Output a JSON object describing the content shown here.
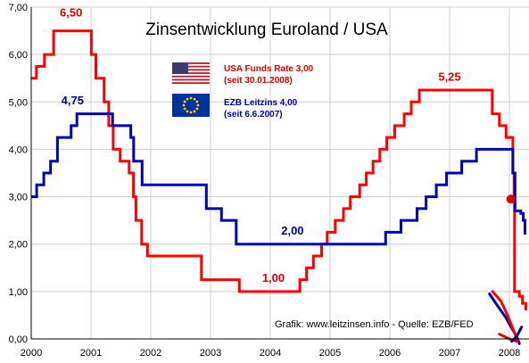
{
  "chart_data": {
    "type": "line",
    "title": "Zinsentwicklung Euroland / USA",
    "xlabel": "",
    "ylabel": "",
    "xlim": [
      2000,
      2008.3
    ],
    "ylim": [
      0,
      7
    ],
    "x_ticks": [
      "2000",
      "2001",
      "2002",
      "2003",
      "2004",
      "2005",
      "2006",
      "2007",
      "2008"
    ],
    "y_ticks": [
      "0,00",
      "1,00",
      "2,00",
      "3,00",
      "4,00",
      "5,00",
      "6,00",
      "7,00"
    ],
    "grid": true,
    "legend_position": "top-center",
    "series": [
      {
        "name": "USA Funds Rate 3,00",
        "name_note": "(seit 30.01.2008)",
        "color": "#ff0000",
        "step": true,
        "points": [
          [
            "2000-01-01",
            5.5
          ],
          [
            "2000-02-02",
            5.75
          ],
          [
            "2000-03-21",
            6.0
          ],
          [
            "2000-05-16",
            6.5
          ],
          [
            "2001-01-03",
            6.0
          ],
          [
            "2001-01-31",
            5.5
          ],
          [
            "2001-03-20",
            5.0
          ],
          [
            "2001-04-18",
            4.5
          ],
          [
            "2001-05-15",
            4.0
          ],
          [
            "2001-06-27",
            3.75
          ],
          [
            "2001-08-21",
            3.5
          ],
          [
            "2001-09-17",
            3.0
          ],
          [
            "2001-10-02",
            2.5
          ],
          [
            "2001-11-06",
            2.0
          ],
          [
            "2001-12-11",
            1.75
          ],
          [
            "2002-11-06",
            1.25
          ],
          [
            "2003-06-25",
            1.0
          ],
          [
            "2004-06-30",
            1.25
          ],
          [
            "2004-08-10",
            1.5
          ],
          [
            "2004-09-21",
            1.75
          ],
          [
            "2004-11-10",
            2.0
          ],
          [
            "2004-12-14",
            2.25
          ],
          [
            "2005-02-02",
            2.5
          ],
          [
            "2005-03-22",
            2.75
          ],
          [
            "2005-05-03",
            3.0
          ],
          [
            "2005-06-30",
            3.25
          ],
          [
            "2005-08-09",
            3.5
          ],
          [
            "2005-09-20",
            3.75
          ],
          [
            "2005-11-01",
            4.0
          ],
          [
            "2005-12-13",
            4.25
          ],
          [
            "2006-01-31",
            4.5
          ],
          [
            "2006-03-28",
            4.75
          ],
          [
            "2006-05-10",
            5.0
          ],
          [
            "2006-06-29",
            5.25
          ],
          [
            "2007-09-18",
            4.75
          ],
          [
            "2007-10-31",
            4.5
          ],
          [
            "2007-12-11",
            4.25
          ],
          [
            "2008-01-22",
            3.5
          ],
          [
            "2008-01-30",
            3.0
          ],
          [
            "2008-02-02",
            1.0
          ],
          [
            "2008-02-20",
            1.0
          ],
          [
            "2008-03-01",
            0.9
          ],
          [
            "2008-03-20",
            0.75
          ],
          [
            "2008-04-10",
            0.6
          ]
        ]
      },
      {
        "name": "EZB Leitzins 4,00",
        "name_note": "(seit 6.6.2007)",
        "color": "#0000bb",
        "step": true,
        "points": [
          [
            "2000-01-01",
            3.0
          ],
          [
            "2000-02-04",
            3.25
          ],
          [
            "2000-03-17",
            3.5
          ],
          [
            "2000-04-28",
            3.75
          ],
          [
            "2000-06-09",
            4.25
          ],
          [
            "2000-09-01",
            4.5
          ],
          [
            "2000-10-06",
            4.75
          ],
          [
            "2001-05-11",
            4.5
          ],
          [
            "2001-08-31",
            4.25
          ],
          [
            "2001-09-18",
            3.75
          ],
          [
            "2001-11-09",
            3.25
          ],
          [
            "2002-12-06",
            2.75
          ],
          [
            "2003-03-07",
            2.5
          ],
          [
            "2003-06-06",
            2.0
          ],
          [
            "2005-12-06",
            2.25
          ],
          [
            "2006-03-08",
            2.5
          ],
          [
            "2006-06-15",
            2.75
          ],
          [
            "2006-08-09",
            3.0
          ],
          [
            "2006-10-11",
            3.25
          ],
          [
            "2006-12-13",
            3.5
          ],
          [
            "2007-03-14",
            3.75
          ],
          [
            "2007-06-13",
            4.0
          ],
          [
            "2008-01-10",
            4.0
          ],
          [
            "2008-01-22",
            3.5
          ],
          [
            "2008-02-05",
            2.7
          ],
          [
            "2008-03-10",
            2.65
          ],
          [
            "2008-03-25",
            2.5
          ],
          [
            "2008-04-05",
            2.2
          ]
        ]
      }
    ],
    "annotations": [
      {
        "text": "6,50",
        "color": "#dd0000",
        "x": "2000-09-01",
        "y": 6.8
      },
      {
        "text": "4,75",
        "color": "#0000aa",
        "x": "2000-09-10",
        "y": 4.95
      },
      {
        "text": "2,00",
        "color": "#0000aa",
        "x": "2004-05-15",
        "y": 2.2
      },
      {
        "text": "1,00",
        "color": "#dd0000",
        "x": "2004-01-20",
        "y": 1.2
      },
      {
        "text": "5,25",
        "color": "#dd0000",
        "x": "2007-01-01",
        "y": 5.45
      }
    ],
    "hand_marks": [
      {
        "color": "#0000aa",
        "points": [
          [
            "2007-09-01",
            0.95
          ],
          [
            "2007-10-20",
            0.7
          ],
          [
            "2007-12-10",
            0.45
          ],
          [
            "2008-01-20",
            0.2
          ],
          [
            "2008-02-15",
            0.05
          ],
          [
            "2008-03-01",
            -0.1
          ]
        ]
      },
      {
        "color": "#ff0000",
        "points": [
          [
            "2007-09-20",
            1.0
          ],
          [
            "2007-11-10",
            0.8
          ],
          [
            "2007-12-20",
            0.5
          ],
          [
            "2008-01-25",
            0.2
          ],
          [
            "2008-02-20",
            -0.05
          ]
        ]
      },
      {
        "color": "#dd0000",
        "points": [
          [
            "2007-11-01",
            0.1
          ],
          [
            "2008-01-01",
            0.0
          ],
          [
            "2008-02-15",
            -0.05
          ]
        ]
      },
      {
        "color": "#0000aa",
        "points": [
          [
            "2008-01-15",
            -0.05
          ],
          [
            "2008-02-15",
            0.05
          ],
          [
            "2008-03-15",
            0.25
          ]
        ]
      }
    ],
    "marker": {
      "color": "#dd0000",
      "x": "2008-01-10",
      "y": 2.95
    },
    "source_text": "Grafik: www.leitzinsen.info - Quelle: EZB/FED"
  }
}
